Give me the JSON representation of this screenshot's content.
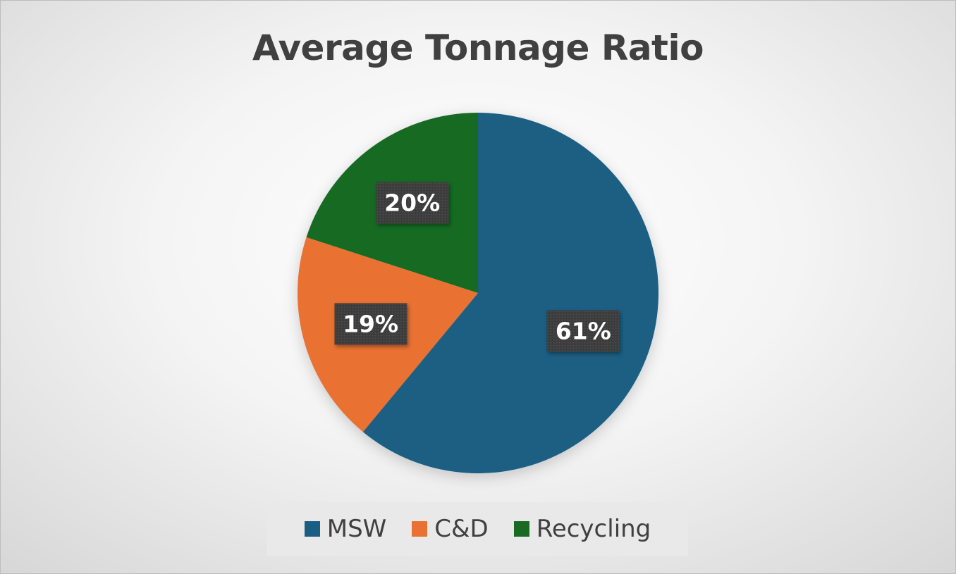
{
  "chart_data": {
    "type": "pie",
    "title": "Average Tonnage Ratio",
    "categories": [
      "MSW",
      "C&D",
      "Recycling"
    ],
    "values": [
      61,
      19,
      20
    ],
    "labels": [
      "61%",
      "19%",
      "20%"
    ],
    "colors": [
      "#1a5e83",
      "#e97132",
      "#196b24"
    ],
    "legend_position": "bottom"
  }
}
